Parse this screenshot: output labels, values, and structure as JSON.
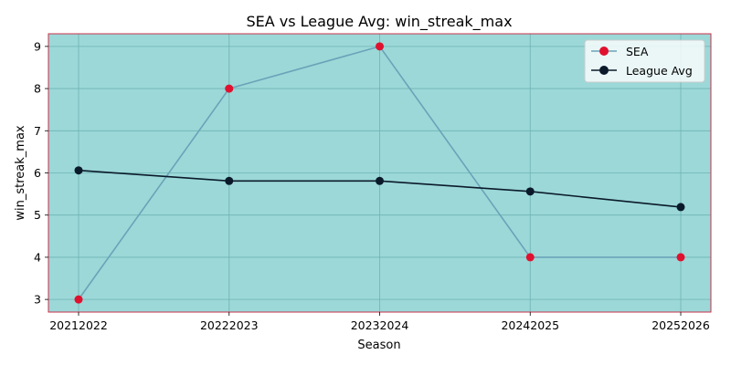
{
  "chart_data": {
    "type": "line",
    "title": "SEA vs League Avg: win_streak_max",
    "xlabel": "Season",
    "ylabel": "win_streak_max",
    "categories": [
      "20212022",
      "20222023",
      "20232024",
      "20242025",
      "20252026"
    ],
    "yticks": [
      3,
      4,
      5,
      6,
      7,
      8,
      9
    ],
    "ylim": [
      2.7,
      9.3
    ],
    "grid": true,
    "legend_placement": "top-right",
    "series": [
      {
        "name": "SEA",
        "values": [
          3,
          8,
          9,
          4,
          4
        ],
        "line_color": "#6aa3b8",
        "marker_color": "#e0112f"
      },
      {
        "name": "League Avg",
        "values": [
          6.06,
          5.81,
          5.81,
          5.56,
          5.19
        ],
        "line_color": "#0a1a2a",
        "marker_color": "#0a1a2a"
      }
    ],
    "colors": {
      "plot_background": "#9cd8d8",
      "plot_border": "#c8324a",
      "grid": "#6fb3b3"
    }
  }
}
